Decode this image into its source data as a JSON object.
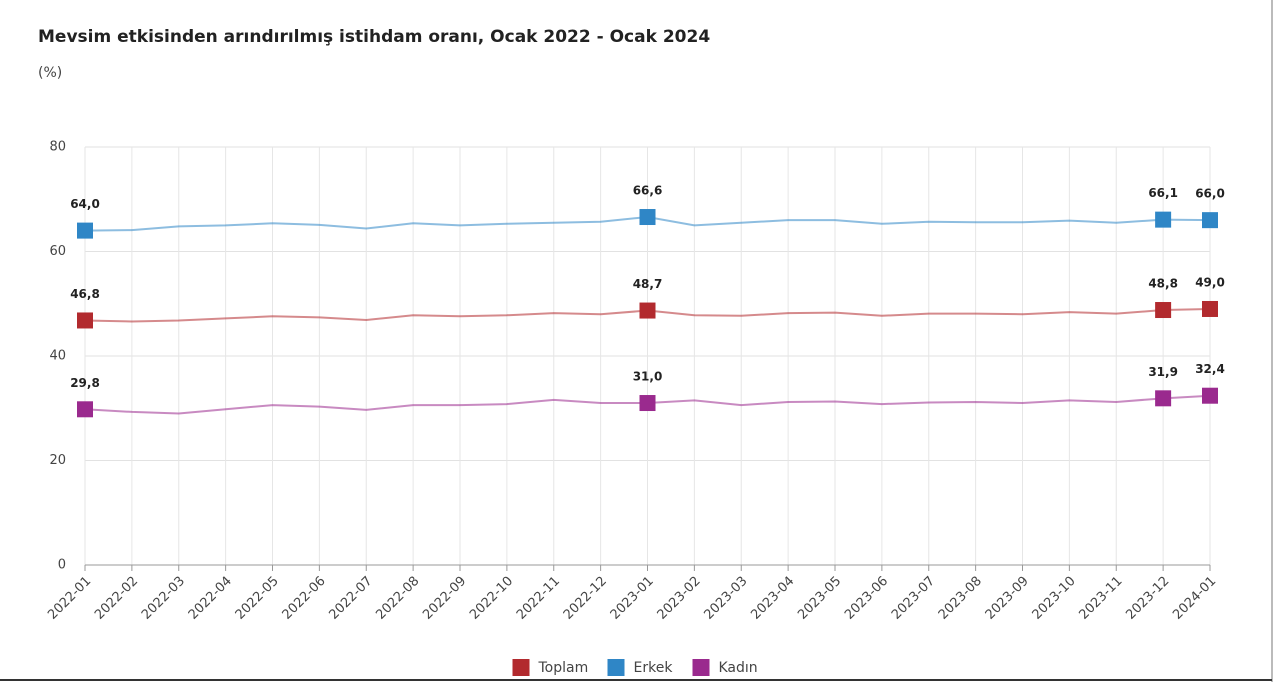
{
  "chart_data": {
    "type": "line",
    "title": "Mevsim etkisinden arındırılmış istihdam oranı, Ocak 2022 - Ocak 2024",
    "subtitle": "(%)",
    "categories": [
      "2022-01",
      "2022-02",
      "2022-03",
      "2022-04",
      "2022-05",
      "2022-06",
      "2022-07",
      "2022-08",
      "2022-09",
      "2022-10",
      "2022-11",
      "2022-12",
      "2023-01",
      "2023-02",
      "2023-03",
      "2023-04",
      "2023-05",
      "2023-06",
      "2023-07",
      "2023-08",
      "2023-09",
      "2023-10",
      "2023-11",
      "2023-12",
      "2024-01"
    ],
    "ylim": [
      0,
      80
    ],
    "yticks": [
      0,
      20,
      40,
      60,
      80
    ],
    "grid": true,
    "legend": "bottom",
    "series": [
      {
        "name": "Toplam",
        "color": "#b22a2e",
        "values": [
          46.8,
          46.6,
          46.8,
          47.2,
          47.6,
          47.4,
          46.9,
          47.8,
          47.6,
          47.8,
          48.2,
          48.0,
          48.7,
          47.8,
          47.7,
          48.2,
          48.3,
          47.7,
          48.1,
          48.1,
          48.0,
          48.4,
          48.1,
          48.8,
          49.0
        ],
        "value_labels": [
          "46,8",
          null,
          null,
          null,
          null,
          null,
          null,
          null,
          null,
          null,
          null,
          null,
          "48,7",
          null,
          null,
          null,
          null,
          null,
          null,
          null,
          null,
          null,
          null,
          "48,8",
          "49,0"
        ]
      },
      {
        "name": "Erkek",
        "color": "#2f86c6",
        "values": [
          64.0,
          64.1,
          64.8,
          65.0,
          65.4,
          65.1,
          64.4,
          65.4,
          65.0,
          65.3,
          65.5,
          65.7,
          66.6,
          65.0,
          65.5,
          66.0,
          66.0,
          65.3,
          65.7,
          65.6,
          65.6,
          65.9,
          65.5,
          66.1,
          66.0
        ],
        "value_labels": [
          "64,0",
          null,
          null,
          null,
          null,
          null,
          null,
          null,
          null,
          null,
          null,
          null,
          "66,6",
          null,
          null,
          null,
          null,
          null,
          null,
          null,
          null,
          null,
          null,
          "66,1",
          "66,0"
        ]
      },
      {
        "name": "Kadın",
        "color": "#9a2a8e",
        "values": [
          29.8,
          29.3,
          29.0,
          29.8,
          30.6,
          30.3,
          29.7,
          30.6,
          30.6,
          30.8,
          31.6,
          31.0,
          31.0,
          31.5,
          30.6,
          31.2,
          31.3,
          30.8,
          31.1,
          31.2,
          31.0,
          31.5,
          31.2,
          31.9,
          32.4
        ],
        "value_labels": [
          "29,8",
          null,
          null,
          null,
          null,
          null,
          null,
          null,
          null,
          null,
          null,
          null,
          "31,0",
          null,
          null,
          null,
          null,
          null,
          null,
          null,
          null,
          null,
          null,
          "31,9",
          "32,4"
        ]
      }
    ]
  }
}
